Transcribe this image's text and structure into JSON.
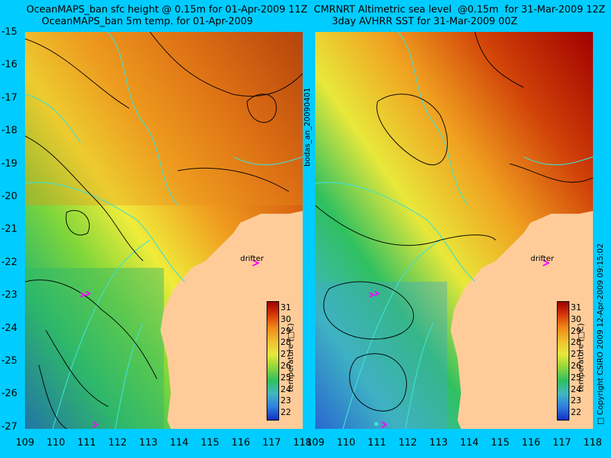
{
  "titles": {
    "left_line1": "OceanMAPS_ban sfc height @ 0.15m for 01-Apr-2009 11Z",
    "left_line2": "OceanMAPS_ban 5m temp. for 01-Apr-2009",
    "right_line1": "CMRNRT Altimetric sea level  @0.15m  for 31-Mar-2009 12Z",
    "right_line2": "3day AVHRR SST for 31-Mar-2009 00Z"
  },
  "axes": {
    "y_ticks": [
      "-15",
      "-16",
      "-17",
      "-18",
      "-19",
      "-20",
      "-21",
      "-22",
      "-23",
      "-24",
      "-25",
      "-26",
      "-27"
    ],
    "x_ticks": [
      "109",
      "110",
      "111",
      "112",
      "113",
      "114",
      "115",
      "116",
      "117",
      "118"
    ]
  },
  "colorbar": {
    "label": "temperature (□C)",
    "ticks": [
      "31",
      "30",
      "29",
      "28",
      "27",
      "26",
      "25",
      "24",
      "23",
      "22"
    ]
  },
  "labels": {
    "drifter": "drifter",
    "run_id": "bodas_an_20090401",
    "copyright": "□ Copyright CSIRO 2009   12-Apr-2009 09:15:02"
  },
  "colors": {
    "background": "#00ccff",
    "land": "#ffcc99",
    "contour": "#000000",
    "bathymetry": "#40e0d0",
    "drifter_marker": "#ff00ff"
  }
}
